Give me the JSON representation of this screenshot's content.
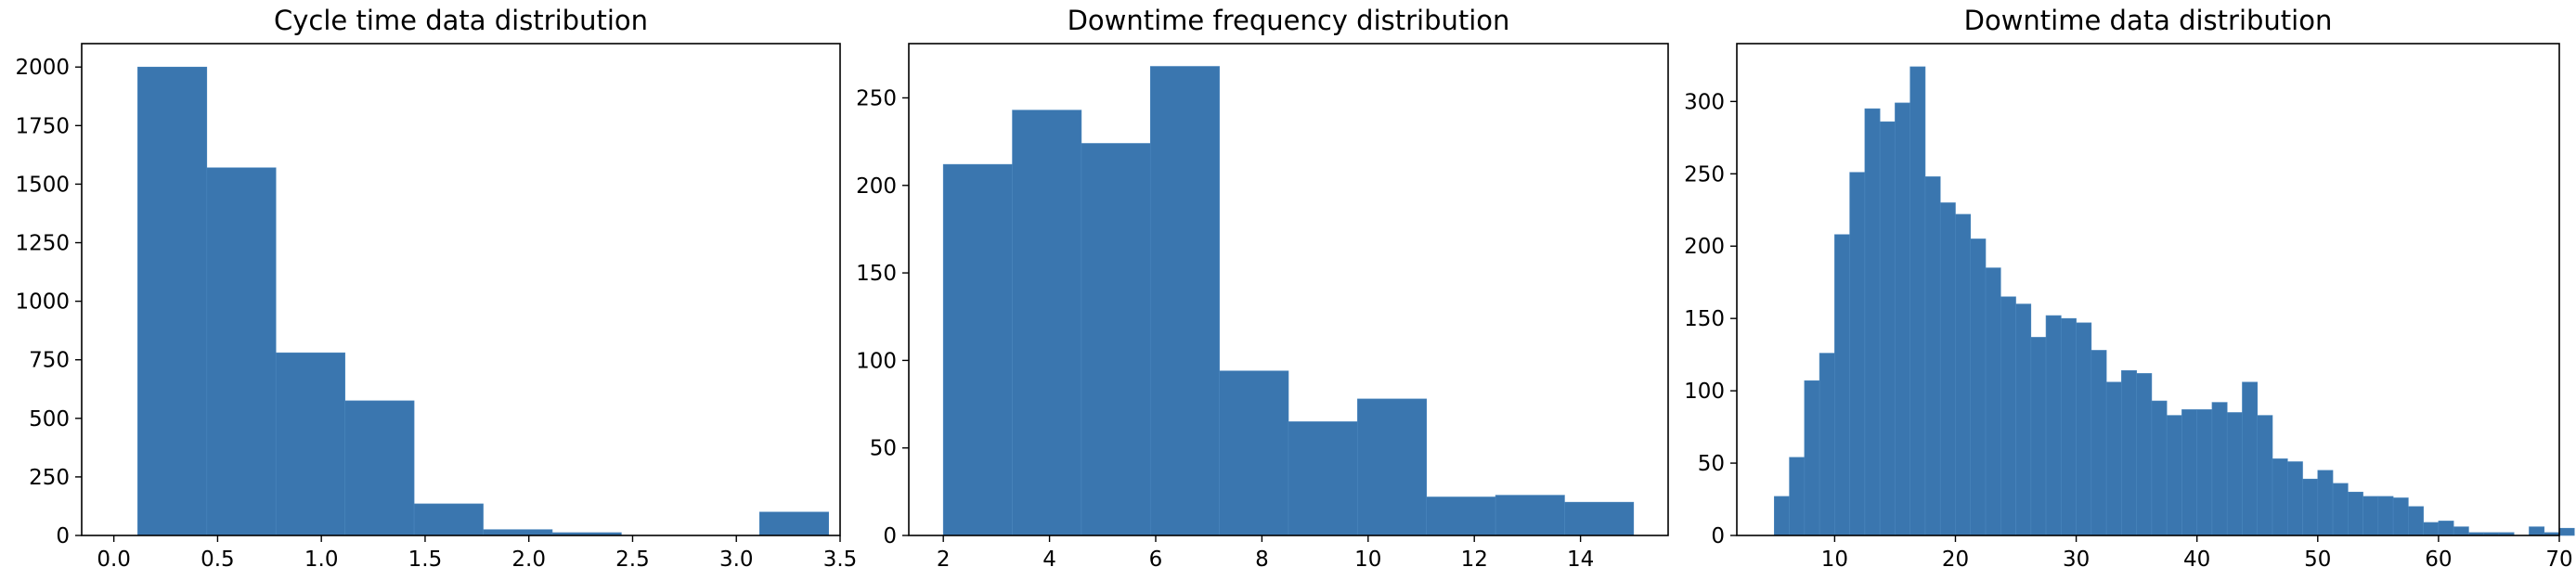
{
  "chart_data": [
    {
      "type": "bar",
      "title": "Cycle time data distribution",
      "xlim": [
        -0.155,
        3.5
      ],
      "ylim": [
        0,
        2100
      ],
      "xticks": [
        0.0,
        0.5,
        1.0,
        1.5,
        2.0,
        2.5,
        3.0,
        3.5
      ],
      "xtick_labels": [
        "0.0",
        "0.5",
        "1.0",
        "1.5",
        "2.0",
        "2.5",
        "3.0",
        "3.5"
      ],
      "yticks": [
        0,
        250,
        500,
        750,
        1000,
        1250,
        1500,
        1750,
        2000
      ],
      "ytick_labels": [
        "0",
        "250",
        "500",
        "750",
        "1000",
        "1250",
        "1500",
        "1750",
        "2000"
      ],
      "bin_edges": [
        0.115,
        0.448,
        0.781,
        1.114,
        1.447,
        1.78,
        2.113,
        2.446,
        2.779,
        3.112,
        3.445
      ],
      "values": [
        2000,
        1570,
        780,
        575,
        135,
        25,
        12,
        0,
        0,
        100
      ],
      "color": "#3a76af",
      "grid": false,
      "legend": "none"
    },
    {
      "type": "bar",
      "title": "Downtime frequency distribution",
      "xlim": [
        1.35,
        15.65
      ],
      "ylim": [
        0,
        281
      ],
      "xticks": [
        2,
        4,
        6,
        8,
        10,
        12,
        14
      ],
      "xtick_labels": [
        "2",
        "4",
        "6",
        "8",
        "10",
        "12",
        "14"
      ],
      "yticks": [
        0,
        50,
        100,
        150,
        200,
        250
      ],
      "ytick_labels": [
        "0",
        "50",
        "100",
        "150",
        "200",
        "250"
      ],
      "bin_edges": [
        2.0,
        3.3,
        4.6,
        5.9,
        7.2,
        8.5,
        9.8,
        11.1,
        12.4,
        13.7,
        15.0
      ],
      "values": [
        212,
        243,
        224,
        268,
        94,
        65,
        78,
        22,
        23,
        19
      ],
      "color": "#3a76af",
      "grid": false,
      "legend": "none"
    },
    {
      "type": "bar",
      "title": "Downtime data distribution",
      "xlim": [
        1.9,
        70.0
      ],
      "ylim": [
        0,
        340
      ],
      "xticks": [
        10,
        20,
        30,
        40,
        50,
        60,
        70
      ],
      "xtick_labels": [
        "10",
        "20",
        "30",
        "40",
        "50",
        "60",
        "70"
      ],
      "yticks": [
        0,
        50,
        100,
        150,
        200,
        250,
        300
      ],
      "ytick_labels": [
        "0",
        "50",
        "100",
        "150",
        "200",
        "250",
        "300"
      ],
      "bin_start": 5.0,
      "bin_width": 1.25,
      "values": [
        27,
        54,
        107,
        126,
        208,
        251,
        295,
        286,
        299,
        324,
        248,
        230,
        222,
        205,
        185,
        165,
        160,
        137,
        152,
        150,
        147,
        128,
        106,
        114,
        112,
        93,
        83,
        87,
        87,
        92,
        85,
        106,
        83,
        53,
        51,
        39,
        45,
        36,
        30,
        27,
        27,
        26,
        20,
        9,
        10,
        6,
        2,
        2,
        2,
        0,
        6,
        2,
        5
      ],
      "color": "#3a76af",
      "grid": false,
      "legend": "none"
    }
  ]
}
